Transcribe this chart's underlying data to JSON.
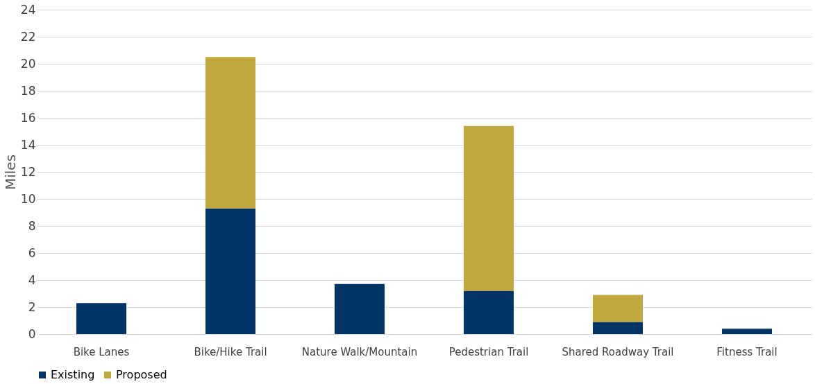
{
  "chart_data": {
    "type": "bar",
    "stacked": true,
    "ylabel": "Miles",
    "categories": [
      "Bike Lanes",
      "Bike/Hike Trail",
      "Nature Walk/Mountain",
      "Pedestrian Trail",
      "Shared Roadway Trail",
      "Fitness Trail"
    ],
    "series": [
      {
        "name": "Existing",
        "color": "#003366",
        "values": [
          2.3,
          9.3,
          3.7,
          3.2,
          0.9,
          0.4
        ]
      },
      {
        "name": "Proposed",
        "color": "#c2a83e",
        "values": [
          null,
          11.2,
          null,
          12.2,
          2.0,
          null
        ]
      }
    ],
    "ylim": [
      0,
      24
    ],
    "yticks": [
      0,
      2,
      4,
      6,
      8,
      10,
      12,
      14,
      16,
      18,
      20,
      22,
      24
    ],
    "grid": "y",
    "legend": "bottom"
  }
}
